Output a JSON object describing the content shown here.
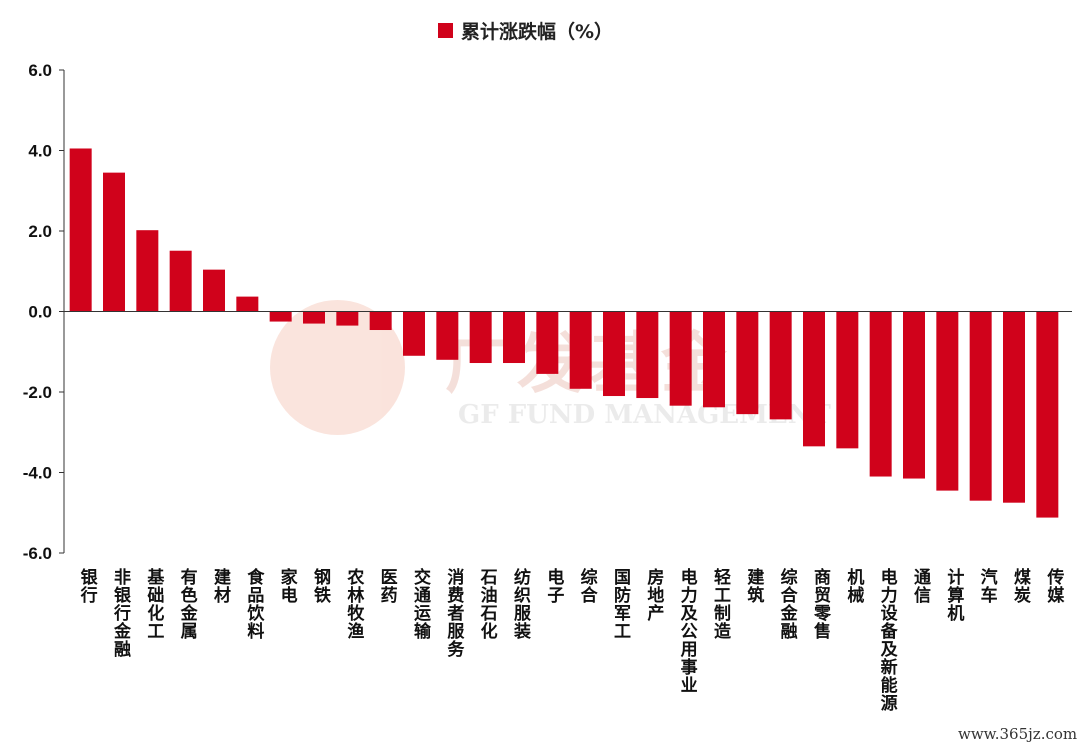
{
  "chart_data": {
    "type": "bar",
    "series": [
      {
        "name": "累计涨跌幅（%）",
        "color": "#d0021b"
      }
    ],
    "categories": [
      "银行",
      "非银行金融",
      "基础化工",
      "有色金属",
      "建材",
      "食品饮料",
      "家电",
      "钢铁",
      "农林牧渔",
      "医药",
      "交通运输",
      "消费者服务",
      "石油石化",
      "纺织服装",
      "电子",
      "综合",
      "国防军工",
      "房地产",
      "电力及公用事业",
      "轻工制造",
      "建筑",
      "综合金融",
      "商贸零售",
      "机械",
      "电力设备及新能源",
      "通信",
      "计算机",
      "汽车",
      "煤炭",
      "传媒"
    ],
    "values": [
      4.05,
      3.45,
      2.02,
      1.51,
      1.04,
      0.37,
      -0.25,
      -0.3,
      -0.35,
      -0.46,
      -1.1,
      -1.2,
      -1.28,
      -1.28,
      -1.55,
      -1.92,
      -2.1,
      -2.15,
      -2.34,
      -2.38,
      -2.55,
      -2.68,
      -3.35,
      -3.4,
      -4.1,
      -4.15,
      -4.45,
      -4.7,
      -4.75,
      -5.12
    ],
    "ylim": [
      -6,
      6
    ],
    "yticks": [
      "6.0",
      "4.0",
      "2.0",
      "0.0",
      "-2.0",
      "-4.0",
      "-6.0"
    ],
    "ytick_values": [
      6,
      4,
      2,
      0,
      -2,
      -4,
      -6
    ],
    "grid": false,
    "legend_position": "top-center"
  },
  "watermark": {
    "cn": "广发基金",
    "en": "GF FUND MANAGEMENT"
  },
  "footer": {
    "site": "www.365jz.com"
  }
}
